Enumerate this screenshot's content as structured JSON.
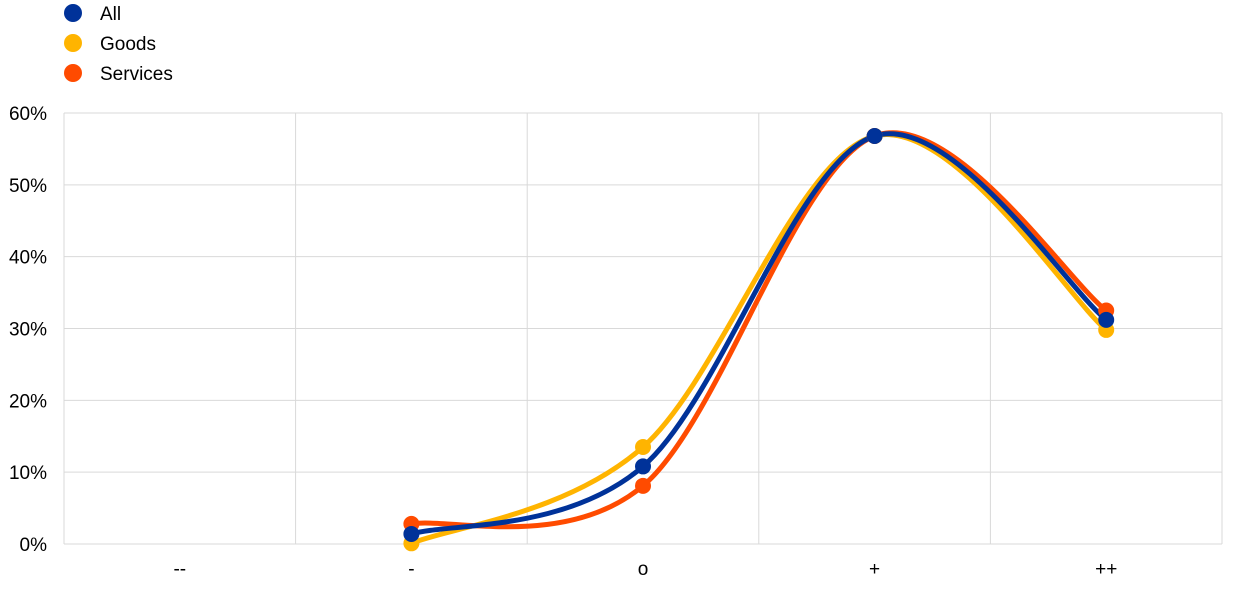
{
  "chart_data": {
    "type": "line",
    "categories": [
      "--",
      "-",
      "o",
      "+",
      "++"
    ],
    "ylim": [
      0,
      60
    ],
    "y_ticks": [
      0,
      10,
      20,
      30,
      40,
      50,
      60
    ],
    "y_tick_labels": [
      "0%",
      "10%",
      "20%",
      "30%",
      "40%",
      "50%",
      "60%"
    ],
    "grid": true,
    "smooth": true,
    "legend_position": "top-left",
    "series": [
      {
        "name": "Goods",
        "color": "#FFB400",
        "values": [
          null,
          0.1,
          13.5,
          56.8,
          29.8
        ]
      },
      {
        "name": "Services",
        "color": "#FF4B00",
        "values": [
          null,
          2.8,
          8.1,
          56.8,
          32.5
        ]
      },
      {
        "name": "All",
        "color": "#003299",
        "values": [
          null,
          1.4,
          10.8,
          56.8,
          31.2
        ]
      }
    ],
    "legend_order": [
      "All",
      "Goods",
      "Services"
    ]
  }
}
